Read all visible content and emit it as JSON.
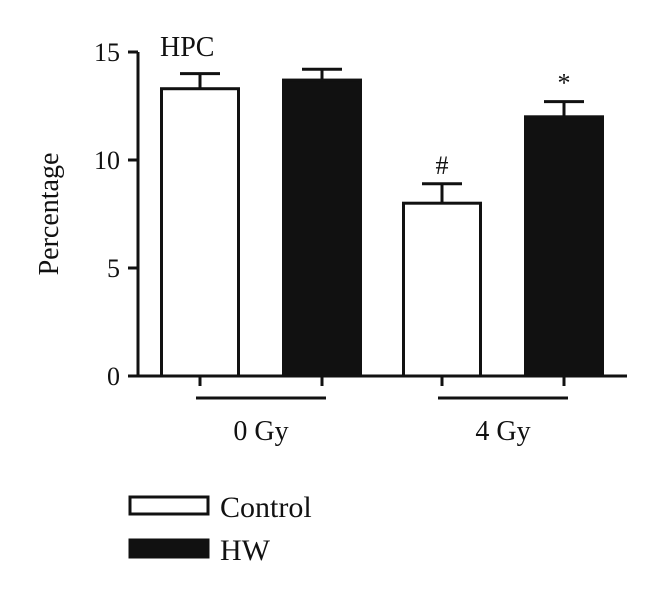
{
  "chart_data": {
    "type": "bar",
    "title": "HPC",
    "ylabel": "Percentage",
    "xlabel": "",
    "ylim": [
      0,
      15
    ],
    "yticks": [
      0,
      5,
      10,
      15
    ],
    "categories": [
      "0 Gy",
      "4 Gy"
    ],
    "series": [
      {
        "name": "Control",
        "color": "#ffffff",
        "values": [
          13.3,
          8.0
        ],
        "errors": [
          0.7,
          0.9
        ],
        "annotations": [
          "",
          "#"
        ]
      },
      {
        "name": "HW",
        "color": "#111111",
        "values": [
          13.7,
          12.0
        ],
        "errors": [
          0.5,
          0.7
        ],
        "annotations": [
          "",
          "*"
        ]
      }
    ],
    "legend_position": "bottom-left",
    "grid": false
  }
}
